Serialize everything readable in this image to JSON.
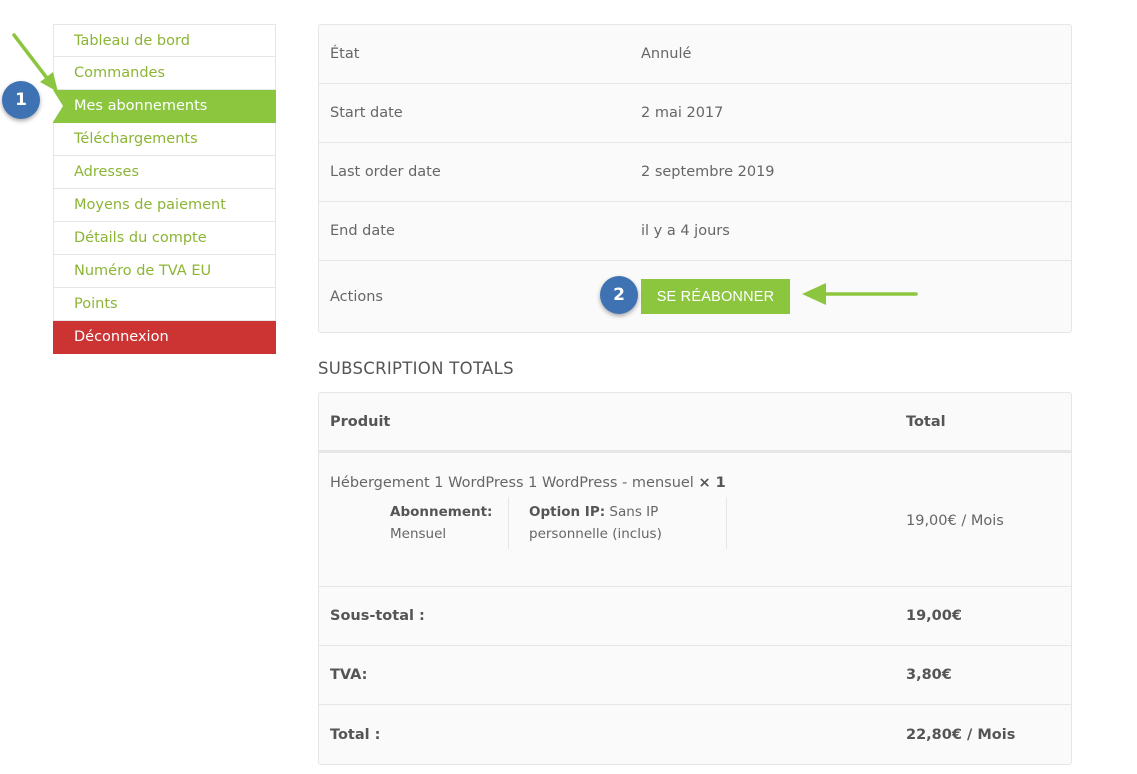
{
  "sidebar": {
    "items": [
      {
        "label": "Tableau de bord"
      },
      {
        "label": "Commandes"
      },
      {
        "label": "Mes abonnements"
      },
      {
        "label": "Téléchargements"
      },
      {
        "label": "Adresses"
      },
      {
        "label": "Moyens de paiement"
      },
      {
        "label": "Détails du compte"
      },
      {
        "label": "Numéro de TVA EU"
      },
      {
        "label": "Points"
      },
      {
        "label": "Déconnexion"
      }
    ]
  },
  "badges": {
    "one": "1",
    "two": "2"
  },
  "details": {
    "rows": [
      {
        "label": "État",
        "value": "Annulé"
      },
      {
        "label": "Start date",
        "value": "2 mai 2017"
      },
      {
        "label": "Last order date",
        "value": "2 septembre 2019"
      },
      {
        "label": "End date",
        "value": "il y a 4 jours"
      },
      {
        "label": "Actions",
        "button": "SE RÉABONNER"
      }
    ]
  },
  "totals": {
    "title": "SUBSCRIPTION TOTALS",
    "header": {
      "product": "Produit",
      "total": "Total"
    },
    "product": {
      "name": "Hébergement 1 WordPress 1 WordPress - mensuel",
      "qty": "× 1",
      "meta": [
        {
          "key": "Abonnement:",
          "value": "Mensuel"
        },
        {
          "key": "Option IP:",
          "value": "Sans IP personnelle (inclus)"
        }
      ],
      "price": "19,00€ / Mois"
    },
    "rows": [
      {
        "label": "Sous-total :",
        "value": "19,00€"
      },
      {
        "label": "TVA:",
        "value": "3,80€"
      },
      {
        "label": "Total :",
        "value": "22,80€ / Mois"
      }
    ]
  },
  "colors": {
    "accent": "#8cc63f",
    "logout": "#cc3333",
    "badge": "#3f72b3",
    "link": "#8cb535"
  },
  "icons": {
    "annotation_arrow_1": "arrow-icon",
    "annotation_arrow_2": "arrow-icon"
  }
}
